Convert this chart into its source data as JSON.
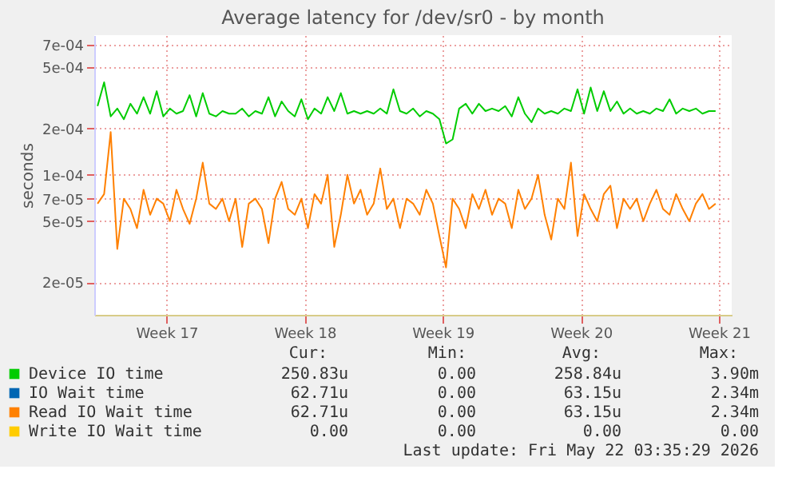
{
  "chart_data": {
    "type": "line",
    "title": "Average latency for /dev/sr0 - by month",
    "ylabel": "seconds",
    "log": true,
    "grid": true,
    "legend": "bottom",
    "line_style": "solid",
    "xlim": [
      "2026-04-19T20:00",
      "2026-05-22T03:35"
    ],
    "xticks": [
      {
        "value": "2026-04-23T12:00",
        "label": "Week 17"
      },
      {
        "value": "2026-04-30T12:00",
        "label": "Week 18"
      },
      {
        "value": "2026-05-07T12:00",
        "label": "Week 19"
      },
      {
        "value": "2026-05-14T12:00",
        "label": "Week 20"
      },
      {
        "value": "2026-05-21T12:00",
        "label": "Week 21"
      }
    ],
    "ylim": [
      1.23e-05,
      0.00081
    ],
    "yticks": [
      {
        "value": 2e-05,
        "label": "2e-05"
      },
      {
        "value": 5e-05,
        "label": "5e-05"
      },
      {
        "value": 7e-05,
        "label": "7e-05"
      },
      {
        "value": 0.0001,
        "label": "1e-04"
      },
      {
        "value": 0.0002,
        "label": "2e-04"
      },
      {
        "value": 0.0005,
        "label": "5e-04"
      },
      {
        "value": 0.0007,
        "label": "7e-04"
      }
    ],
    "x": [
      "2026-04-20T00:00",
      "2026-04-20T08:00",
      "2026-04-20T16:00",
      "2026-04-21T00:00",
      "2026-04-21T08:00",
      "2026-04-21T16:00",
      "2026-04-22T00:00",
      "2026-04-22T08:00",
      "2026-04-22T16:00",
      "2026-04-23T00:00",
      "2026-04-23T08:00",
      "2026-04-23T16:00",
      "2026-04-24T00:00",
      "2026-04-24T08:00",
      "2026-04-24T16:00",
      "2026-04-25T00:00",
      "2026-04-25T08:00",
      "2026-04-25T16:00",
      "2026-04-26T00:00",
      "2026-04-26T08:00",
      "2026-04-26T16:00",
      "2026-04-27T00:00",
      "2026-04-27T08:00",
      "2026-04-27T16:00",
      "2026-04-28T00:00",
      "2026-04-28T08:00",
      "2026-04-28T16:00",
      "2026-04-29T00:00",
      "2026-04-29T08:00",
      "2026-04-29T16:00",
      "2026-04-30T00:00",
      "2026-04-30T08:00",
      "2026-04-30T16:00",
      "2026-05-01T00:00",
      "2026-05-01T08:00",
      "2026-05-01T16:00",
      "2026-05-02T00:00",
      "2026-05-02T08:00",
      "2026-05-02T16:00",
      "2026-05-03T00:00",
      "2026-05-03T08:00",
      "2026-05-03T16:00",
      "2026-05-04T00:00",
      "2026-05-04T08:00",
      "2026-05-04T16:00",
      "2026-05-05T00:00",
      "2026-05-05T08:00",
      "2026-05-05T16:00",
      "2026-05-06T00:00",
      "2026-05-06T08:00",
      "2026-05-06T16:00",
      "2026-05-07T00:00",
      "2026-05-07T08:00",
      "2026-05-07T16:00",
      "2026-05-08T00:00",
      "2026-05-08T08:00",
      "2026-05-08T16:00",
      "2026-05-09T00:00",
      "2026-05-09T08:00",
      "2026-05-09T16:00",
      "2026-05-10T00:00",
      "2026-05-10T08:00",
      "2026-05-10T16:00",
      "2026-05-11T00:00",
      "2026-05-11T08:00",
      "2026-05-11T16:00",
      "2026-05-12T00:00",
      "2026-05-12T08:00",
      "2026-05-12T16:00",
      "2026-05-13T00:00",
      "2026-05-13T08:00",
      "2026-05-13T16:00",
      "2026-05-14T00:00",
      "2026-05-14T08:00",
      "2026-05-14T16:00",
      "2026-05-15T00:00",
      "2026-05-15T08:00",
      "2026-05-15T16:00",
      "2026-05-16T00:00",
      "2026-05-16T08:00",
      "2026-05-16T16:00",
      "2026-05-17T00:00",
      "2026-05-17T08:00",
      "2026-05-17T16:00",
      "2026-05-18T00:00",
      "2026-05-18T08:00",
      "2026-05-18T16:00",
      "2026-05-19T00:00",
      "2026-05-19T08:00",
      "2026-05-19T16:00",
      "2026-05-20T00:00",
      "2026-05-20T08:00",
      "2026-05-20T16:00",
      "2026-05-21T00:00",
      "2026-05-21T08:00"
    ],
    "series": [
      {
        "name": "Device IO time",
        "color": "#00cc00",
        "values": [
          0.00028,
          0.0004,
          0.00024,
          0.00027,
          0.00023,
          0.00029,
          0.00025,
          0.00032,
          0.00025,
          0.00035,
          0.00024,
          0.00027,
          0.00025,
          0.00026,
          0.00033,
          0.00024,
          0.00034,
          0.00025,
          0.00024,
          0.00026,
          0.00025,
          0.00025,
          0.00027,
          0.00024,
          0.00026,
          0.00025,
          0.00032,
          0.00024,
          0.0003,
          0.00026,
          0.00024,
          0.00031,
          0.00023,
          0.00027,
          0.00025,
          0.00032,
          0.00026,
          0.00034,
          0.00025,
          0.00026,
          0.00025,
          0.00026,
          0.00025,
          0.00027,
          0.00025,
          0.00036,
          0.00026,
          0.00025,
          0.00027,
          0.00024,
          0.00026,
          0.00025,
          0.00023,
          0.00016,
          0.00017,
          0.00027,
          0.00029,
          0.00025,
          0.00029,
          0.00026,
          0.00027,
          0.00026,
          0.00028,
          0.00024,
          0.00032,
          0.00025,
          0.00022,
          0.00027,
          0.00025,
          0.00026,
          0.00025,
          0.00027,
          0.00026,
          0.00036,
          0.00025,
          0.00037,
          0.00026,
          0.00035,
          0.00026,
          0.0003,
          0.00025,
          0.00027,
          0.00025,
          0.00026,
          0.00025,
          0.00027,
          0.00026,
          0.00031,
          0.00025,
          0.00027,
          0.00026,
          0.00027,
          0.00025,
          0.00026,
          0.00026
        ]
      },
      {
        "name": "IO Wait time",
        "color": "#0066b3",
        "values": [
          null,
          null,
          null,
          null,
          null,
          null,
          null,
          null,
          null,
          null,
          null,
          null,
          null,
          null,
          null,
          null,
          null,
          null,
          null,
          null,
          null,
          null,
          null,
          null,
          null,
          null,
          null,
          null,
          null,
          null,
          null,
          null,
          null,
          null,
          null,
          null,
          null,
          null,
          null,
          null,
          null,
          null,
          null,
          null,
          null,
          null,
          null,
          null,
          null,
          null,
          null,
          null,
          null,
          null,
          null,
          null,
          null,
          null,
          null,
          null,
          null,
          null,
          null,
          null,
          null,
          null,
          null,
          null,
          null,
          null,
          null,
          null,
          null,
          null,
          null,
          null,
          null,
          null,
          null,
          null,
          null,
          null,
          null,
          null,
          null,
          null,
          null,
          null,
          null,
          null,
          null,
          null,
          null,
          null,
          null
        ]
      },
      {
        "name": "Read IO Wait time",
        "color": "#ff8000",
        "values": [
          6.5e-05,
          7.5e-05,
          0.00019,
          3.3e-05,
          7e-05,
          6e-05,
          4.5e-05,
          8e-05,
          5.5e-05,
          7e-05,
          6.5e-05,
          5e-05,
          8e-05,
          6e-05,
          4.8e-05,
          7e-05,
          0.00012,
          6.5e-05,
          6e-05,
          7e-05,
          5e-05,
          7e-05,
          3.4e-05,
          6.5e-05,
          7e-05,
          6e-05,
          3.6e-05,
          7e-05,
          9e-05,
          6e-05,
          5.5e-05,
          7e-05,
          4.5e-05,
          7.5e-05,
          6.5e-05,
          0.0001,
          3.4e-05,
          5.5e-05,
          0.0001,
          6.5e-05,
          8e-05,
          5.5e-05,
          6.5e-05,
          0.00011,
          6e-05,
          7e-05,
          4.5e-05,
          7e-05,
          6.5e-05,
          5.5e-05,
          8e-05,
          6.5e-05,
          4e-05,
          2.5e-05,
          7e-05,
          6e-05,
          4.5e-05,
          7.5e-05,
          6e-05,
          8e-05,
          5.5e-05,
          7e-05,
          6.5e-05,
          4.5e-05,
          8e-05,
          6e-05,
          7e-05,
          0.0001,
          5.5e-05,
          3.8e-05,
          7e-05,
          6e-05,
          0.00012,
          4e-05,
          7.5e-05,
          6e-05,
          5e-05,
          7.5e-05,
          8.5e-05,
          4.5e-05,
          7e-05,
          6e-05,
          7e-05,
          5e-05,
          6.5e-05,
          8e-05,
          6e-05,
          5.5e-05,
          7.5e-05,
          6e-05,
          5e-05,
          6.5e-05,
          7.5e-05,
          6e-05,
          6.5e-05
        ]
      },
      {
        "name": "Write IO Wait time",
        "color": "#ffcc00",
        "values": [
          null,
          null,
          null,
          null,
          null,
          null,
          null,
          null,
          null,
          null,
          null,
          null,
          null,
          null,
          null,
          null,
          null,
          null,
          null,
          null,
          null,
          null,
          null,
          null,
          null,
          null,
          null,
          null,
          null,
          null,
          null,
          null,
          null,
          null,
          null,
          null,
          null,
          null,
          null,
          null,
          null,
          null,
          null,
          null,
          null,
          null,
          null,
          null,
          null,
          null,
          null,
          null,
          null,
          null,
          null,
          null,
          null,
          null,
          null,
          null,
          null,
          null,
          null,
          null,
          null,
          null,
          null,
          null,
          null,
          null,
          null,
          null,
          null,
          null,
          null,
          null,
          null,
          null,
          null,
          null,
          null,
          null,
          null,
          null,
          null,
          null,
          null,
          null,
          null,
          null,
          null,
          null,
          null,
          null,
          null
        ]
      }
    ],
    "annotations": [
      "Cur:",
      "Min:",
      "Avg:",
      "Max:",
      "250.83u",
      "0.00",
      "258.84u",
      "3.90m",
      "62.71u",
      "0.00",
      "63.15u",
      "2.34m",
      "62.71u",
      "0.00",
      "63.15u",
      "2.34m",
      "0.00",
      "0.00",
      "0.00",
      "0.00",
      "Last update: Fri May 22 03:35:29 2026"
    ]
  }
}
